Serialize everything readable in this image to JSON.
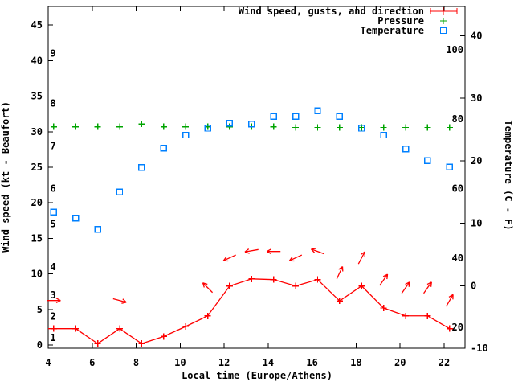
{
  "chart_data": {
    "type": "line",
    "title": "",
    "xlabel": "Local time (Europe/Athens)",
    "ylabel_left": "Wind speed (kt - Beaufort)",
    "ylabel_right": "Temperature (C - F)",
    "x_range": [
      4,
      22.95
    ],
    "y_left_range_kt": [
      0,
      47.6
    ],
    "y_right_range_c": [
      -10,
      44.7
    ],
    "x_ticks": [
      4,
      6,
      8,
      10,
      12,
      14,
      16,
      18,
      20,
      22
    ],
    "left_ticks_kt": [
      0,
      5,
      10,
      15,
      20,
      25,
      30,
      35,
      40,
      45
    ],
    "right_ticks_c": [
      -10,
      0,
      10,
      20,
      30,
      40
    ],
    "fahrenheit_inner_labels": [
      20,
      40,
      60,
      80,
      100
    ],
    "beaufort_inner_labels": [
      {
        "beaufort": "1",
        "kt": 1
      },
      {
        "beaufort": "2",
        "kt": 4
      },
      {
        "beaufort": "3",
        "kt": 7
      },
      {
        "beaufort": "4",
        "kt": 11
      },
      {
        "beaufort": "5",
        "kt": 17
      },
      {
        "beaufort": "6",
        "kt": 22
      },
      {
        "beaufort": "7",
        "kt": 28
      },
      {
        "beaufort": "8",
        "kt": 34
      },
      {
        "beaufort": "9",
        "kt": 41
      }
    ],
    "x_hours": [
      4.25,
      5.25,
      6.25,
      7.25,
      8.25,
      9.25,
      10.25,
      11.25,
      12.25,
      13.25,
      14.25,
      15.25,
      16.25,
      17.25,
      18.25,
      19.25,
      20.25,
      21.25,
      22.25
    ],
    "series": [
      {
        "name": "Wind speed, gusts, and direction",
        "style": "line+plus",
        "color": "#ff0000",
        "label_color": "#990000",
        "axis": "left",
        "values_kt": [
          2.3,
          2.3,
          0.2,
          2.3,
          0.2,
          1.2,
          2.6,
          4.1,
          8.3,
          9.3,
          9.2,
          8.3,
          9.2,
          6.2,
          8.3,
          5.2,
          4.1,
          4.1,
          2.3
        ]
      },
      {
        "name": "Pressure",
        "style": "plus-points",
        "color": "#00a400",
        "label_color": "#000000",
        "axis": "left",
        "values": [
          30.7,
          30.7,
          30.7,
          30.7,
          31.1,
          30.7,
          30.7,
          30.7,
          30.7,
          30.7,
          30.7,
          30.6,
          30.6,
          30.6,
          30.6,
          30.6,
          30.6,
          30.6,
          30.6
        ]
      },
      {
        "name": "Temperature",
        "style": "open-square-points",
        "color": "#0080ff",
        "label_color": "#000000",
        "axis": "right",
        "values_c": [
          11.8,
          10.8,
          9.0,
          15.0,
          18.9,
          22.0,
          24.1,
          25.2,
          26.0,
          25.9,
          27.1,
          27.1,
          28.0,
          27.1,
          25.2,
          24.1,
          21.9,
          20.0,
          19.0
        ]
      }
    ],
    "wind_lead_in_kt": 2.3,
    "wind_arrows": [
      {
        "index": 0,
        "points_toward_deg": 0
      },
      {
        "index": 3,
        "points_toward_deg": -15
      },
      {
        "index": 7,
        "points_toward_deg": 135
      },
      {
        "index": 8,
        "points_toward_deg": -155
      },
      {
        "index": 9,
        "points_toward_deg": -170
      },
      {
        "index": 10,
        "points_toward_deg": 180
      },
      {
        "index": 11,
        "points_toward_deg": -155
      },
      {
        "index": 12,
        "points_toward_deg": 160
      },
      {
        "index": 13,
        "points_toward_deg": 65
      },
      {
        "index": 14,
        "points_toward_deg": 62
      },
      {
        "index": 15,
        "points_toward_deg": 55
      },
      {
        "index": 16,
        "points_toward_deg": 55
      },
      {
        "index": 17,
        "points_toward_deg": 55
      },
      {
        "index": 18,
        "points_toward_deg": 60
      }
    ],
    "legend_position": "top-right-inside",
    "grid": false,
    "colors": {
      "wind": "#ff0000",
      "wind_legend_text": "#990000",
      "pressure": "#00a400",
      "temperature": "#0080ff",
      "axis": "#000000",
      "background": "#ffffff"
    }
  }
}
